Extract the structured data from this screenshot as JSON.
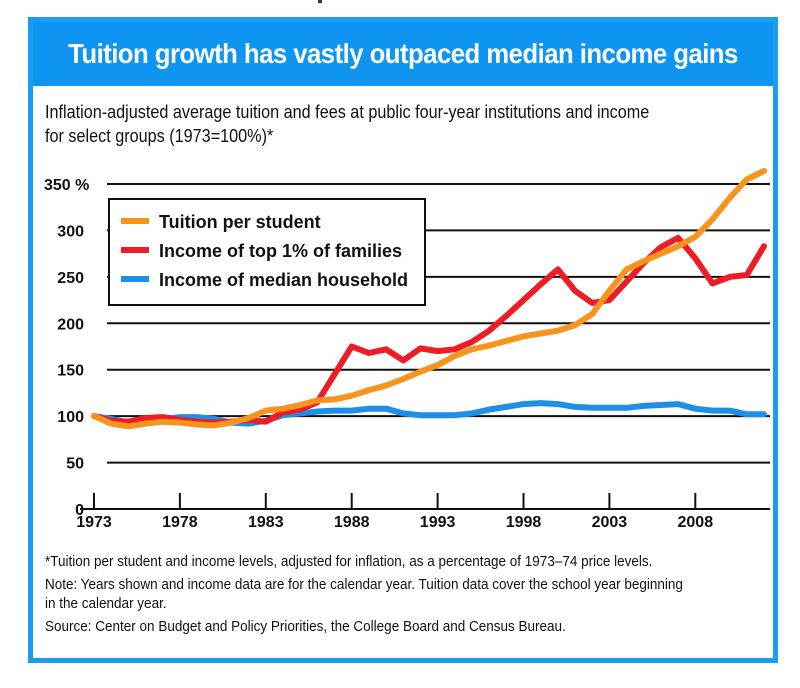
{
  "header": {
    "title": "Tuition growth has vastly outpaced median income gains"
  },
  "subtitle": {
    "line1": "Inflation-adjusted average tuition and fees at public four-year institutions and income",
    "line2": "for select groups (1973=100%)*"
  },
  "notes": {
    "footnote": "*Tuition per student and income levels, adjusted for inflation, as a percentage of 1973–74 price levels.",
    "note_line1": "Note: Years shown and income data are for the calendar year. Tuition data cover the school year beginning",
    "note_line2": "in the calendar year.",
    "source": "Source: Center on Budget and Policy Priorities, the College Board and Census Bureau."
  },
  "chart_data": {
    "type": "line",
    "title": "Tuition growth has vastly outpaced median income gains",
    "subtitle": "Inflation-adjusted average tuition and fees at public four-year institutions and income for select groups (1973=100%)*",
    "xlabel": "",
    "ylabel": "",
    "x": [
      1973,
      1974,
      1975,
      1976,
      1977,
      1978,
      1979,
      1980,
      1981,
      1982,
      1983,
      1984,
      1985,
      1986,
      1987,
      1988,
      1989,
      1990,
      1991,
      1992,
      1993,
      1994,
      1995,
      1996,
      1997,
      1998,
      1999,
      2000,
      2001,
      2002,
      2003,
      2004,
      2005,
      2006,
      2007,
      2008,
      2009,
      2010,
      2011,
      2012
    ],
    "xlim": [
      1973,
      2012
    ],
    "ylim": [
      0,
      350
    ],
    "y_ticks": [
      0,
      50,
      100,
      150,
      200,
      250,
      300,
      350
    ],
    "y_tick_labels": [
      "0",
      "50",
      "100",
      "150",
      "200",
      "250",
      "300",
      "350 %"
    ],
    "x_ticks": [
      1973,
      1978,
      1983,
      1988,
      1993,
      1998,
      2003,
      2008
    ],
    "x_tick_labels": [
      "1973",
      "1978",
      "1983",
      "1988",
      "1993",
      "1998",
      "2003",
      "2008"
    ],
    "grid": "horizontal",
    "legend_position": "top-left",
    "series": [
      {
        "name": "Tuition per student",
        "color": "#f7941d",
        "values": [
          100,
          92,
          89,
          92,
          94,
          93,
          91,
          90,
          93,
          98,
          106,
          108,
          112,
          117,
          118,
          122,
          128,
          133,
          140,
          148,
          155,
          165,
          172,
          176,
          181,
          186,
          189,
          192,
          198,
          210,
          235,
          258,
          267,
          275,
          283,
          293,
          312,
          335,
          355,
          364
        ]
      },
      {
        "name": "Income of top 1% of families",
        "color": "#ee1c24",
        "values": [
          100,
          95,
          94,
          98,
          99,
          96,
          94,
          93,
          94,
          96,
          94,
          104,
          107,
          115,
          145,
          175,
          168,
          172,
          160,
          173,
          170,
          172,
          180,
          192,
          208,
          225,
          242,
          258,
          235,
          222,
          225,
          245,
          265,
          282,
          292,
          270,
          243,
          250,
          252,
          283
        ]
      },
      {
        "name": "Income of median household",
        "color": "#1e8fe8",
        "values": [
          100,
          97,
          93,
          95,
          97,
          99,
          99,
          97,
          93,
          92,
          95,
          101,
          103,
          105,
          106,
          106,
          108,
          108,
          103,
          101,
          101,
          101,
          103,
          107,
          110,
          113,
          114,
          113,
          110,
          109,
          109,
          109,
          111,
          112,
          113,
          108,
          106,
          106,
          102,
          102
        ]
      }
    ],
    "draw_order": [
      "Income of median household",
      "Income of top 1% of families",
      "Tuition per student"
    ]
  }
}
